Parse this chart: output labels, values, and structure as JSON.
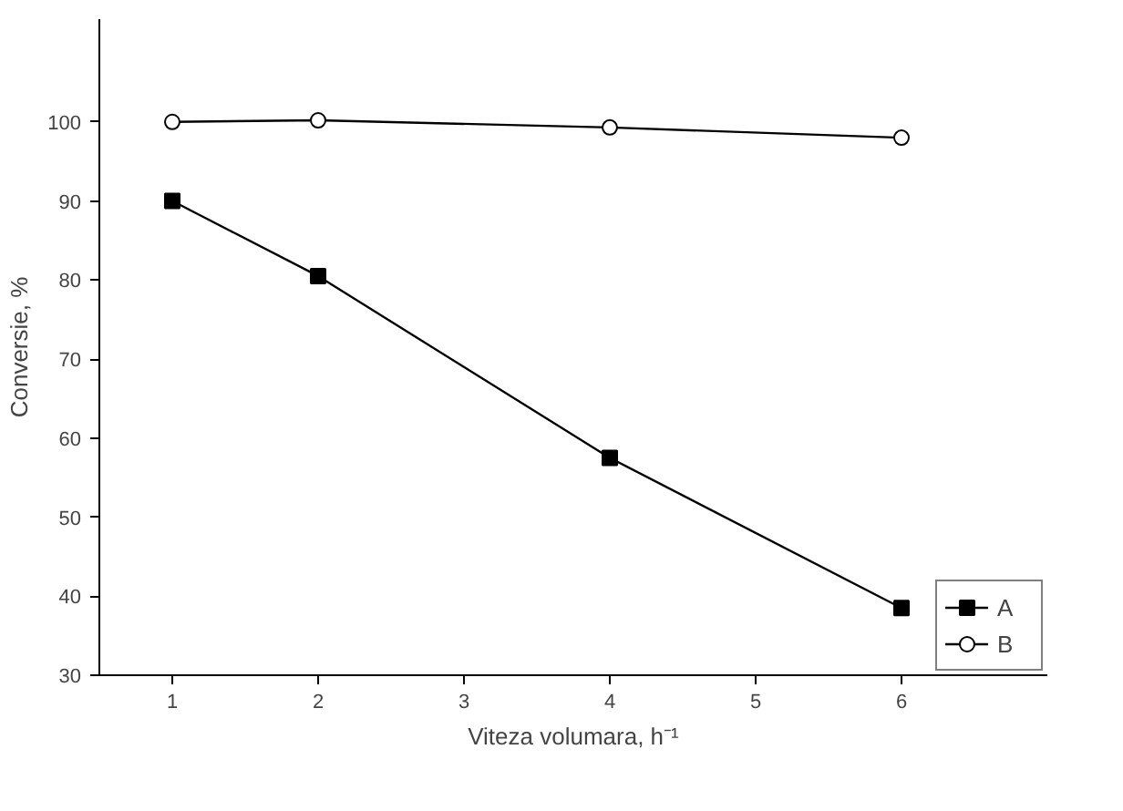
{
  "chart_data": {
    "type": "line",
    "xlabel": "Viteza volumara, h⁻¹",
    "ylabel": "Conversie, %",
    "x": [
      1,
      2,
      4,
      6
    ],
    "series": [
      {
        "name": "A",
        "color": "#000000",
        "marker": "square",
        "values": [
          90,
          80.5,
          57.5,
          38.5
        ]
      },
      {
        "name": "B",
        "color": "#000000",
        "marker": "circle",
        "values": [
          100,
          100.2,
          99.3,
          98
        ]
      }
    ],
    "xlim": [
      0.5,
      7.0
    ],
    "xticks": [
      1,
      2,
      3,
      4,
      5,
      6
    ],
    "ylim": [
      30,
      113
    ],
    "yticks": [
      30,
      40,
      50,
      60,
      70,
      80,
      90,
      100
    ],
    "grid": false,
    "legend": "bottom right",
    "line_style": "solid"
  }
}
